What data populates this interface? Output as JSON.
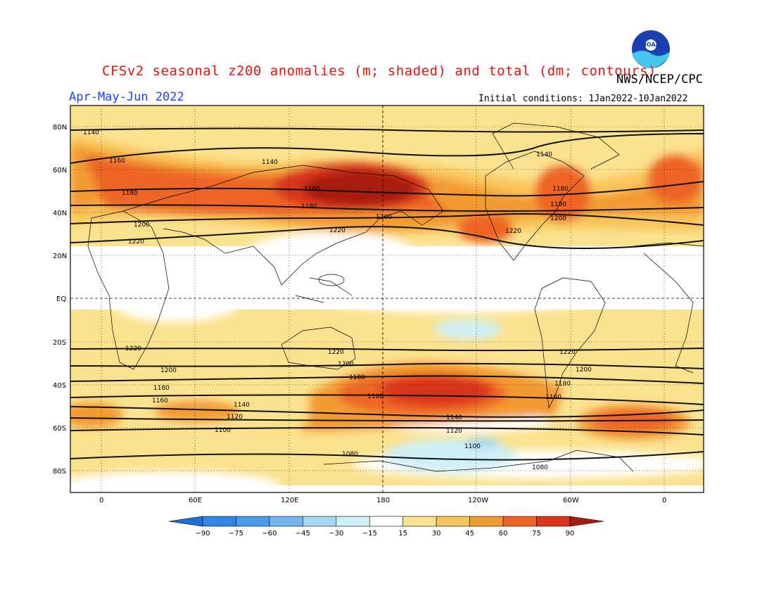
{
  "title": "CFSv2 seasonal z200 anomalies (m; shaded) and total (dm; contours)",
  "agency": "NWS/NCEP/CPC",
  "season": "Apr-May-Jun 2022",
  "initial_conditions": "Initial conditions: 1Jan2022-10Jan2022",
  "logo_text": "NOAA",
  "lat_labels": [
    "80N",
    "60N",
    "40N",
    "20N",
    "EQ",
    "20S",
    "40S",
    "60S",
    "80S"
  ],
  "lon_labels": [
    "0",
    "60E",
    "120E",
    "180",
    "120W",
    "60W",
    "0"
  ],
  "colorbar": {
    "labels": [
      "-90",
      "-75",
      "-60",
      "-45",
      "-30",
      "-15",
      "15",
      "30",
      "45",
      "60",
      "75",
      "90"
    ],
    "colors": [
      "#1e6fd8",
      "#2f86e8",
      "#4a9ced",
      "#75b6f2",
      "#a6d8f5",
      "#cff0f7",
      "#ffffff",
      "#fbe28f",
      "#f9c55a",
      "#f39a32",
      "#ee6525",
      "#d9361a",
      "#a81b10"
    ]
  },
  "contour_labels": {
    "c1140_a": "1140",
    "c1140_b": "1140",
    "c1140_c": "1140",
    "c1160_a": "1160",
    "c1160_b": "1160",
    "c1180_a": "1180",
    "c1180_b": "1180",
    "c1180_c": "1180",
    "c1180_d": "1180",
    "c1200_a": "1200",
    "c1200_b": "1200",
    "c1200_c": "1200",
    "c1220_a": "1220",
    "c1220_b": "1220",
    "c1220_c": "1220",
    "s1220_a": "1220",
    "s1220_b": "1220",
    "s1220_c": "1220",
    "s1200_a": "1200",
    "s1200_b": "1200",
    "s1200_c": "1200",
    "s1180_a": "1180",
    "s1180_b": "1180",
    "s1180_c": "1180",
    "s1160_a": "1160",
    "s1160_b": "1160",
    "s1160_c": "1160",
    "s1140_a": "1140",
    "s1140_b": "1140",
    "s1120_a": "1120",
    "s1120_b": "1120",
    "s1100_a": "1100",
    "s1100_b": "1100",
    "s1080_a": "1080",
    "s1080_b": "1080"
  }
}
